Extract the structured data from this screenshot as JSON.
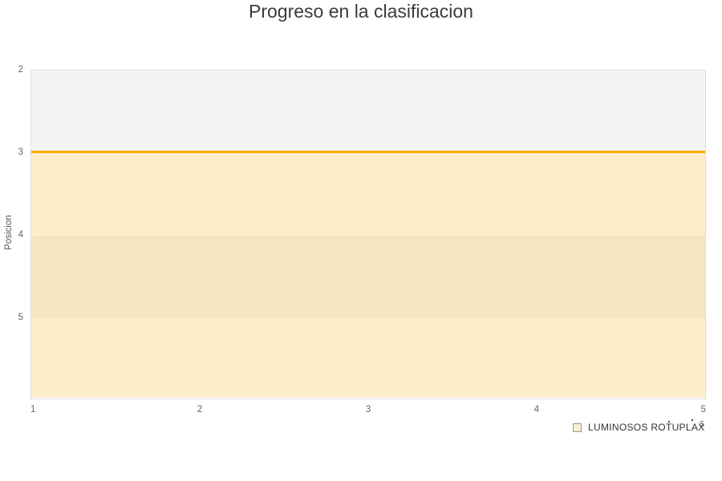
{
  "chart": {
    "title": "Progreso en la clasificacion",
    "y_axis": {
      "title": "Posicion",
      "ticks": [
        "2",
        "3",
        "4",
        "5"
      ]
    },
    "x_axis": {
      "ticks": [
        "1",
        "2",
        "3",
        "4",
        "5"
      ]
    },
    "legend": {
      "items": [
        {
          "label": "LUMINOSOS ROTUPLAX",
          "swatch_fill": "#fdeecd",
          "swatch_border": "#999999"
        }
      ]
    },
    "secondary_tick_label": "5",
    "colors": {
      "line": "#ffaa00",
      "area_fill": "rgba(255,170,0,0.2)",
      "band_gray": "#f4f4f4",
      "plot_border": "#dcdcdc",
      "title_text": "#3b3b3b",
      "axis_text": "#666666",
      "legend_text": "#333333"
    }
  },
  "chart_data": {
    "type": "area",
    "title": "Progreso en la clasificacion",
    "xlabel": "",
    "ylabel": "Posicion",
    "x": [
      1,
      2,
      3,
      4,
      5
    ],
    "series": [
      {
        "name": "LUMINOSOS ROTUPLAX",
        "values": [
          3,
          3,
          3,
          3,
          3
        ]
      }
    ],
    "xlim": [
      1,
      5
    ],
    "ylim": [
      2,
      6
    ],
    "y_axis_reversed": true,
    "y_tick_labels": [
      2,
      3,
      4,
      5
    ],
    "x_tick_labels": [
      1,
      2,
      3,
      4,
      5
    ],
    "grid": "alternating-horizontal-bands",
    "vertical_gridlines": false,
    "line_color": "#ffaa00",
    "fill_color": "rgba(255,170,0,0.2)",
    "legend_position": "bottom-right"
  }
}
